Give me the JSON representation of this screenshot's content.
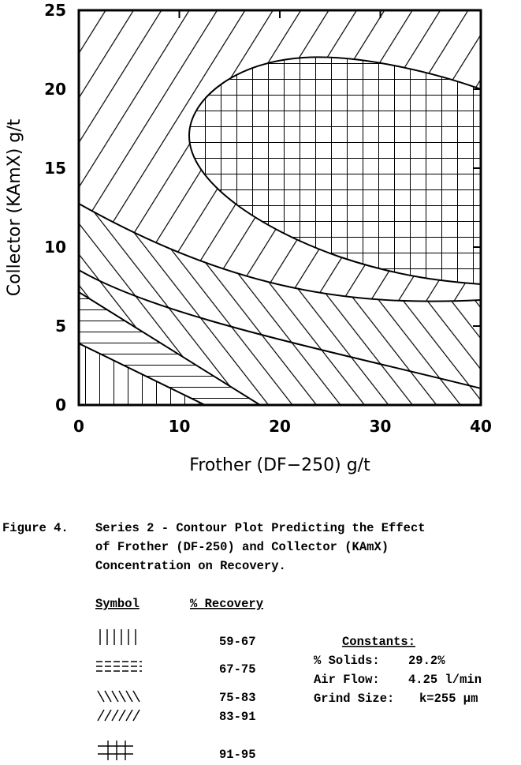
{
  "chart_data": {
    "type": "contour",
    "xlabel": "Frother (DF−250) g/t",
    "ylabel": "Collector (KAmX) g/t",
    "xlim": [
      0,
      40
    ],
    "ylim": [
      0,
      25
    ],
    "xticks": [
      0,
      10,
      20,
      30,
      40
    ],
    "yticks": [
      0,
      5,
      10,
      15,
      20,
      25
    ]
  },
  "caption": {
    "label": "Figure 4.",
    "text": [
      "Series 2 - Contour Plot Predicting the Effect",
      "of Frother (DF-250) and Collector (KAmX)",
      "Concentration on Recovery."
    ]
  },
  "legend": {
    "headers": [
      "Symbol",
      "% Recovery"
    ],
    "ranges": [
      "59-67",
      "67-75",
      "75-83",
      "83-91",
      "91-95"
    ]
  },
  "constants": {
    "title": "Constants:",
    "rows": [
      [
        "% Solids:",
        "29.2%"
      ],
      [
        "Air Flow:",
        "4.25 l/min"
      ],
      [
        "Grind Size:",
        "k=255 µm"
      ]
    ]
  }
}
